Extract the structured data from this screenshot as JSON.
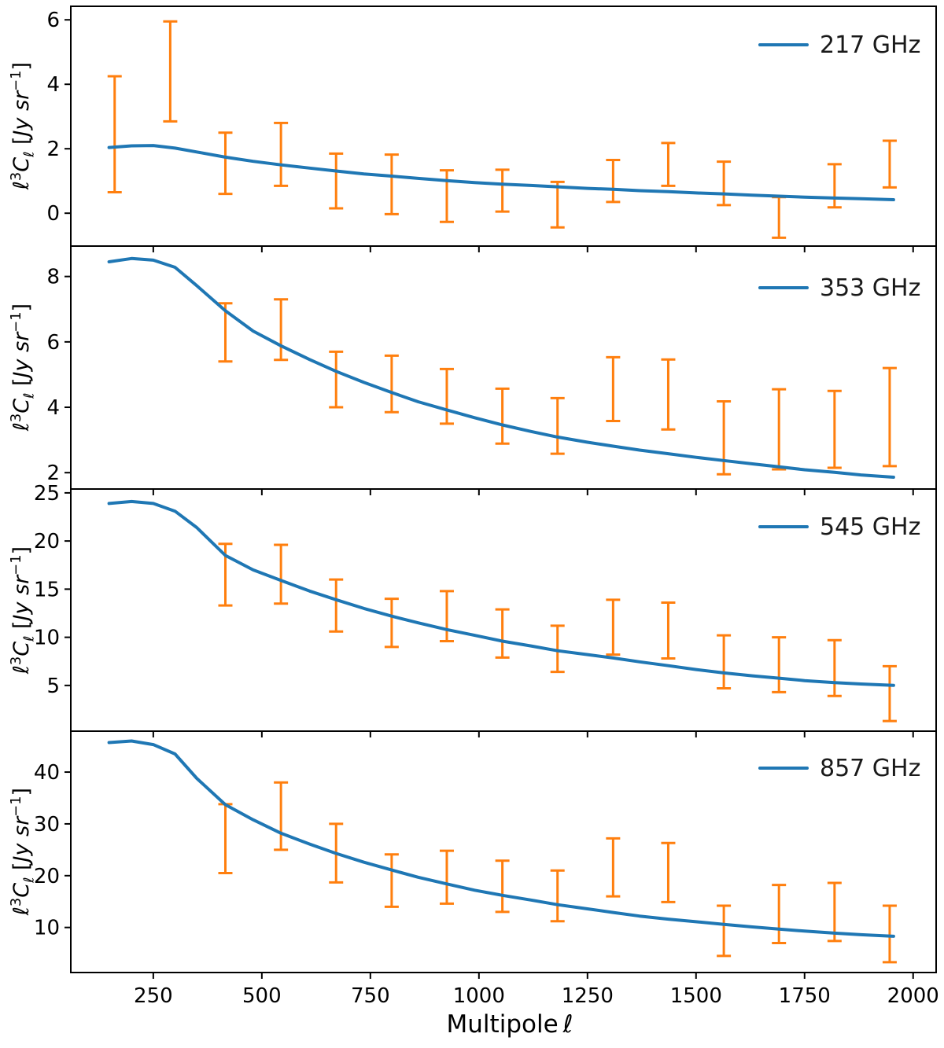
{
  "style": {
    "line_color": "#1f77b4",
    "errorbar_color": "#ff7f0e",
    "spine_color": "#000000",
    "background": "#ffffff",
    "tick_label_color": "#000000"
  },
  "labels": {
    "ylabel": {
      "ell": "ℓ",
      "exp": "3",
      "C": "C",
      "sub": "ℓ",
      "open": " [",
      "unit": "Jy sr",
      "sup": "−1",
      "close": "]"
    },
    "xlabel_text": "Multipole",
    "xlabel_symbol": "ℓ"
  },
  "axes": {
    "xlim": [
      60,
      2053
    ],
    "xticks": [
      250,
      500,
      750,
      1000,
      1250,
      1500,
      1750,
      2000
    ]
  },
  "chart_data": [
    {
      "type": "line",
      "legend": "217 GHz",
      "ylim": [
        -1.02,
        6.42
      ],
      "yticks": [
        0,
        2,
        4,
        6
      ],
      "line": [
        [
          148,
          2.04
        ],
        [
          200,
          2.09
        ],
        [
          250,
          2.1
        ],
        [
          300,
          2.02
        ],
        [
          350,
          1.9
        ],
        [
          416,
          1.74
        ],
        [
          480,
          1.61
        ],
        [
          544,
          1.5
        ],
        [
          610,
          1.4
        ],
        [
          671,
          1.31
        ],
        [
          735,
          1.22
        ],
        [
          799,
          1.15
        ],
        [
          860,
          1.08
        ],
        [
          926,
          1.01
        ],
        [
          990,
          0.95
        ],
        [
          1054,
          0.9
        ],
        [
          1120,
          0.86
        ],
        [
          1181,
          0.82
        ],
        [
          1250,
          0.77
        ],
        [
          1309,
          0.74
        ],
        [
          1370,
          0.7
        ],
        [
          1436,
          0.67
        ],
        [
          1500,
          0.63
        ],
        [
          1564,
          0.6
        ],
        [
          1630,
          0.56
        ],
        [
          1691,
          0.53
        ],
        [
          1750,
          0.5
        ],
        [
          1819,
          0.47
        ],
        [
          1880,
          0.45
        ],
        [
          1955,
          0.42
        ]
      ],
      "errorbars": [
        [
          161,
          0.65,
          4.25
        ],
        [
          289,
          2.85,
          5.95
        ],
        [
          416,
          0.6,
          2.5
        ],
        [
          544,
          0.85,
          2.8
        ],
        [
          671,
          0.15,
          1.85
        ],
        [
          799,
          -0.03,
          1.82
        ],
        [
          926,
          -0.27,
          1.33
        ],
        [
          1054,
          0.05,
          1.35
        ],
        [
          1181,
          -0.44,
          0.97
        ],
        [
          1309,
          0.35,
          1.65
        ],
        [
          1436,
          0.85,
          2.18
        ],
        [
          1564,
          0.25,
          1.6
        ],
        [
          1691,
          -0.76,
          0.5
        ],
        [
          1819,
          0.18,
          1.52
        ],
        [
          1946,
          0.8,
          2.25
        ]
      ]
    },
    {
      "type": "line",
      "legend": "353 GHz",
      "ylim": [
        1.5,
        8.93
      ],
      "yticks": [
        2,
        4,
        6,
        8
      ],
      "line": [
        [
          148,
          8.45
        ],
        [
          200,
          8.55
        ],
        [
          250,
          8.5
        ],
        [
          300,
          8.28
        ],
        [
          350,
          7.72
        ],
        [
          416,
          6.95
        ],
        [
          480,
          6.33
        ],
        [
          544,
          5.88
        ],
        [
          610,
          5.46
        ],
        [
          671,
          5.1
        ],
        [
          735,
          4.76
        ],
        [
          799,
          4.45
        ],
        [
          860,
          4.17
        ],
        [
          926,
          3.92
        ],
        [
          990,
          3.68
        ],
        [
          1054,
          3.46
        ],
        [
          1120,
          3.26
        ],
        [
          1181,
          3.09
        ],
        [
          1250,
          2.93
        ],
        [
          1309,
          2.81
        ],
        [
          1370,
          2.69
        ],
        [
          1436,
          2.58
        ],
        [
          1500,
          2.47
        ],
        [
          1564,
          2.37
        ],
        [
          1630,
          2.27
        ],
        [
          1691,
          2.18
        ],
        [
          1750,
          2.09
        ],
        [
          1819,
          2.01
        ],
        [
          1880,
          1.93
        ],
        [
          1955,
          1.86
        ]
      ],
      "errorbars": [
        [
          416,
          5.4,
          7.18
        ],
        [
          544,
          5.45,
          7.3
        ],
        [
          671,
          4.0,
          5.7
        ],
        [
          799,
          3.85,
          5.58
        ],
        [
          926,
          3.5,
          5.17
        ],
        [
          1054,
          2.89,
          4.57
        ],
        [
          1181,
          2.58,
          4.28
        ],
        [
          1309,
          3.58,
          5.53
        ],
        [
          1436,
          3.32,
          5.46
        ],
        [
          1564,
          1.95,
          4.18
        ],
        [
          1691,
          2.1,
          4.55
        ],
        [
          1819,
          2.15,
          4.5
        ],
        [
          1946,
          2.2,
          5.2
        ]
      ]
    },
    {
      "type": "line",
      "legend": "545 GHz",
      "ylim": [
        0.25,
        25.4
      ],
      "yticks": [
        5,
        10,
        15,
        20,
        25
      ],
      "line": [
        [
          148,
          23.9
        ],
        [
          200,
          24.1
        ],
        [
          250,
          23.9
        ],
        [
          300,
          23.1
        ],
        [
          350,
          21.4
        ],
        [
          416,
          18.5
        ],
        [
          480,
          17.0
        ],
        [
          544,
          15.9
        ],
        [
          610,
          14.8
        ],
        [
          671,
          13.9
        ],
        [
          735,
          13.0
        ],
        [
          799,
          12.2
        ],
        [
          860,
          11.5
        ],
        [
          926,
          10.8
        ],
        [
          990,
          10.2
        ],
        [
          1054,
          9.6
        ],
        [
          1120,
          9.1
        ],
        [
          1181,
          8.6
        ],
        [
          1250,
          8.2
        ],
        [
          1309,
          7.85
        ],
        [
          1370,
          7.45
        ],
        [
          1436,
          7.05
        ],
        [
          1500,
          6.65
        ],
        [
          1564,
          6.3
        ],
        [
          1630,
          6.0
        ],
        [
          1691,
          5.75
        ],
        [
          1750,
          5.5
        ],
        [
          1819,
          5.3
        ],
        [
          1880,
          5.15
        ],
        [
          1955,
          5.0
        ]
      ],
      "errorbars": [
        [
          416,
          13.3,
          19.7
        ],
        [
          544,
          13.5,
          19.6
        ],
        [
          671,
          10.6,
          16.0
        ],
        [
          799,
          9.0,
          14.0
        ],
        [
          926,
          9.6,
          14.8
        ],
        [
          1054,
          7.9,
          12.9
        ],
        [
          1181,
          6.4,
          11.2
        ],
        [
          1309,
          8.2,
          13.9
        ],
        [
          1436,
          7.8,
          13.6
        ],
        [
          1564,
          4.7,
          10.2
        ],
        [
          1691,
          4.3,
          10.0
        ],
        [
          1819,
          3.9,
          9.7
        ],
        [
          1946,
          1.3,
          7.0
        ]
      ]
    },
    {
      "type": "line",
      "legend": "857 GHz",
      "ylim": [
        1.3,
        47.9
      ],
      "yticks": [
        10,
        20,
        30,
        40
      ],
      "line": [
        [
          148,
          45.7
        ],
        [
          200,
          46.0
        ],
        [
          250,
          45.3
        ],
        [
          300,
          43.5
        ],
        [
          350,
          38.8
        ],
        [
          416,
          33.7
        ],
        [
          480,
          30.8
        ],
        [
          544,
          28.2
        ],
        [
          610,
          26.1
        ],
        [
          671,
          24.3
        ],
        [
          735,
          22.6
        ],
        [
          799,
          21.1
        ],
        [
          860,
          19.7
        ],
        [
          926,
          18.4
        ],
        [
          990,
          17.2
        ],
        [
          1054,
          16.2
        ],
        [
          1120,
          15.3
        ],
        [
          1181,
          14.4
        ],
        [
          1250,
          13.6
        ],
        [
          1309,
          12.9
        ],
        [
          1370,
          12.2
        ],
        [
          1436,
          11.6
        ],
        [
          1500,
          11.1
        ],
        [
          1564,
          10.6
        ],
        [
          1630,
          10.1
        ],
        [
          1691,
          9.7
        ],
        [
          1750,
          9.3
        ],
        [
          1819,
          8.9
        ],
        [
          1880,
          8.6
        ],
        [
          1955,
          8.3
        ]
      ],
      "errorbars": [
        [
          416,
          20.5,
          33.8
        ],
        [
          544,
          25.0,
          38.0
        ],
        [
          671,
          18.7,
          30.0
        ],
        [
          799,
          14.0,
          24.1
        ],
        [
          926,
          14.6,
          24.8
        ],
        [
          1054,
          13.0,
          22.9
        ],
        [
          1181,
          11.2,
          21.0
        ],
        [
          1309,
          16.0,
          27.2
        ],
        [
          1436,
          14.9,
          26.3
        ],
        [
          1564,
          4.5,
          14.2
        ],
        [
          1691,
          7.0,
          18.2
        ],
        [
          1819,
          7.4,
          18.6
        ],
        [
          1946,
          3.3,
          14.2
        ]
      ]
    }
  ]
}
